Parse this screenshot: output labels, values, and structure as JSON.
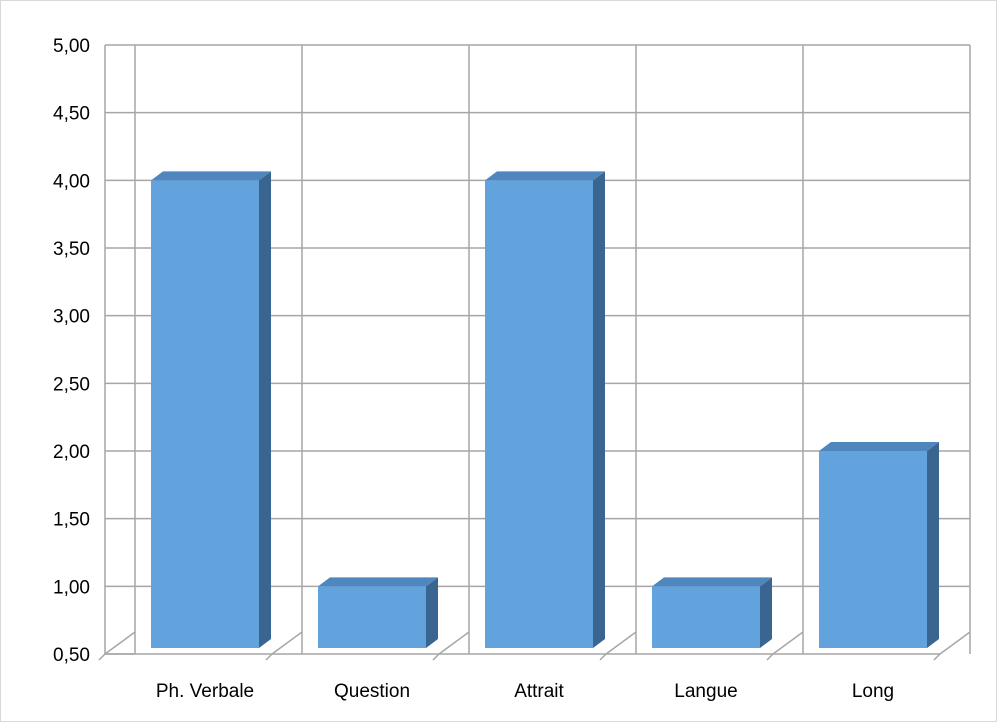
{
  "chart_data": {
    "type": "bar",
    "style": "3d-clustered-column",
    "title": "",
    "xlabel": "",
    "ylabel": "",
    "categories": [
      "Ph. Verbale",
      "Question",
      "Attrait",
      "Langue",
      "Long"
    ],
    "values": [
      4.0,
      1.0,
      4.0,
      1.0,
      2.0
    ],
    "ylim": [
      0.5,
      5.0
    ],
    "ytick_labels": [
      "0,50",
      "1,00",
      "1,50",
      "2,00",
      "2,50",
      "3,00",
      "3,50",
      "4,00",
      "4,50",
      "5,00"
    ],
    "grid": true,
    "legend": "none",
    "colors": {
      "bar_front": "#62a3de",
      "bar_side": "#3a6590",
      "bar_top": "#4f86bd",
      "grid": "#a6a6a6",
      "frame": "#d9d9d9"
    }
  }
}
